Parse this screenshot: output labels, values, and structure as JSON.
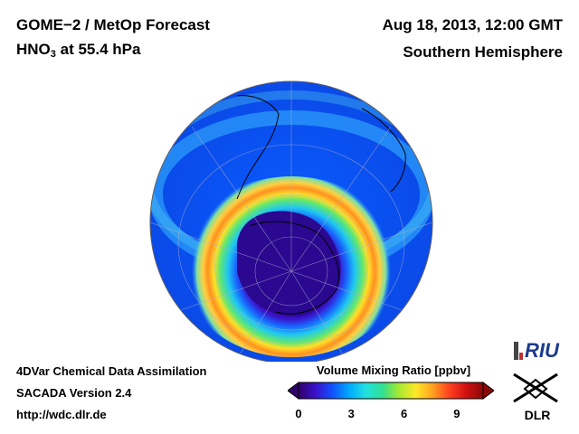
{
  "header": {
    "product": "GOME−2 / MetOp Forecast",
    "species_main": "HNO",
    "species_sub": "3",
    "species_level": " at 55.4 hPa",
    "datetime": "Aug 18, 2013, 12:00 GMT",
    "region": "Southern Hemisphere"
  },
  "footer": {
    "line1": "4DVar Chemical Data Assimilation",
    "line2": "SACADA Version 2.4",
    "line3": "http://wdc.dlr.de"
  },
  "colorbar": {
    "title": "Volume Mixing Ratio [ppbv]",
    "ticks": [
      "0",
      "3",
      "6",
      "9"
    ],
    "tick_values": [
      0,
      3,
      6,
      9
    ],
    "range": [
      0,
      10.5
    ],
    "colors": [
      "#30006a",
      "#3a10c8",
      "#1050ff",
      "#00a8ff",
      "#20e0e0",
      "#30e090",
      "#a8e830",
      "#ffe828",
      "#ffa020",
      "#ff4020",
      "#d01010",
      "#8a0808"
    ]
  },
  "logos": {
    "riu": "RIU",
    "dlr": "DLR"
  }
}
